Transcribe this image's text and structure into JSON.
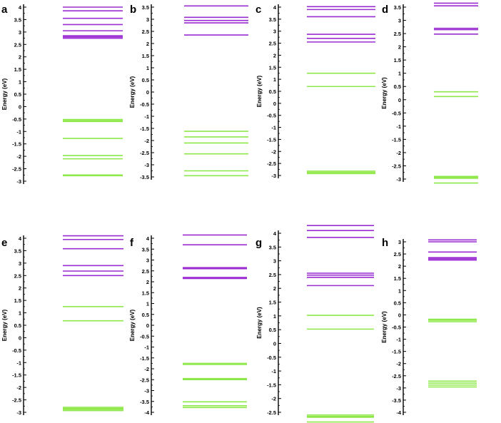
{
  "figure": {
    "colors": {
      "green": "#8ee84a",
      "purple": "#9a2cd2",
      "axis": "#000000"
    }
  },
  "chart_data": [
    {
      "panel": "a",
      "type": "energy_levels",
      "ylabel": "Energy (eV)",
      "ylim": [
        -3,
        4
      ],
      "tick_step": 0.5,
      "tick_labels": [
        "4",
        "3.5",
        "3",
        "2.5",
        "2",
        "1.5",
        "1",
        "0.5",
        "0",
        "-0.5",
        "-1",
        "-1.5",
        "-2",
        "-2.5",
        "-3"
      ],
      "green_levels": [
        -0.52,
        -0.57,
        -0.6,
        -1.28,
        -1.97,
        -2.1,
        -2.75,
        -2.78
      ],
      "purple_levels": [
        4.0,
        3.85,
        3.55,
        3.3,
        3.05,
        2.85,
        2.8,
        2.75
      ]
    },
    {
      "panel": "b",
      "type": "energy_levels",
      "ylabel": "Energy (eV)",
      "ylim": [
        -3.5,
        4
      ],
      "tick_step": 0.5,
      "tick_labels": [
        "3.5",
        "3",
        "2.5",
        "2",
        "1.5",
        "1",
        "0.5",
        "0",
        "-0.5",
        "-1",
        "-1.5",
        "-2",
        "-2.5",
        "-3",
        "-3.5"
      ],
      "green_levels": [
        -1.62,
        -1.85,
        -2.1,
        -2.55,
        -3.25,
        -3.45
      ],
      "purple_levels": [
        3.85,
        3.55,
        3.08,
        2.95,
        2.85,
        2.35
      ]
    },
    {
      "panel": "c",
      "type": "energy_levels",
      "ylabel": "Energy (eV)",
      "ylim": [
        -3,
        4
      ],
      "tick_step": 0.5,
      "tick_labels": [
        "4",
        "3.5",
        "3",
        "2.5",
        "2",
        "1.5",
        "1",
        "0.5",
        "0",
        "-0.5",
        "-1",
        "-1.5",
        "-2",
        "-2.5",
        "-3"
      ],
      "green_levels": [
        1.25,
        0.7,
        -2.82,
        -2.87,
        -2.92
      ],
      "purple_levels": [
        4.02,
        3.9,
        3.6,
        2.87,
        2.7,
        2.55
      ]
    },
    {
      "panel": "d",
      "type": "energy_levels",
      "ylabel": "Energy (eV)",
      "ylim": [
        -3.5,
        4
      ],
      "tick_step": 0.5,
      "tick_labels": [
        "3.5",
        "3",
        "2.5",
        "2",
        "1.5",
        "1",
        "0.5",
        "0",
        "-0.5",
        "-1",
        "-1.5",
        "-2",
        "-2.5",
        "-3"
      ],
      "green_levels": [
        0.3,
        0.12,
        -2.9,
        -2.93,
        -2.97,
        -3.15
      ],
      "purple_levels": [
        3.65,
        3.55,
        2.7,
        2.65,
        2.48
      ]
    },
    {
      "panel": "e",
      "type": "energy_levels",
      "ylabel": "Energy (eV)",
      "ylim": [
        -3,
        4
      ],
      "tick_step": 0.5,
      "tick_labels": [
        "4",
        "3.5",
        "3",
        "2.5",
        "2",
        "1.5",
        "1",
        "0.5",
        "0",
        "-0.5",
        "-1",
        "-1.5",
        "-2",
        "-2.5",
        "-3"
      ],
      "green_levels": [
        1.25,
        0.68,
        -2.8,
        -2.85,
        -2.88,
        -2.93
      ],
      "purple_levels": [
        4.1,
        3.95,
        3.58,
        2.9,
        2.68,
        2.5
      ]
    },
    {
      "panel": "f",
      "type": "energy_levels",
      "ylabel": "Energy (eV)",
      "ylim": [
        -4,
        4.2
      ],
      "tick_step": 0.5,
      "tick_labels": [
        "4",
        "3.5",
        "3",
        "2.5",
        "2",
        "1.5",
        "1",
        "0.5",
        "0",
        "-0.5",
        "-1",
        "-1.5",
        "-2",
        "-2.5",
        "-3",
        "-3.5",
        "-4"
      ],
      "green_levels": [
        -1.75,
        -1.8,
        -2.45,
        -2.5,
        -3.52,
        -3.7,
        -3.78
      ],
      "purple_levels": [
        4.15,
        3.7,
        2.65,
        2.6,
        2.2,
        2.15
      ]
    },
    {
      "panel": "g",
      "type": "energy_levels",
      "ylabel": "Energy (eV)",
      "ylim": [
        -3,
        4.3
      ],
      "tick_step": 0.5,
      "tick_labels": [
        "4",
        "3.5",
        "3",
        "2.5",
        "2",
        "1.5",
        "1",
        "0.5",
        "0",
        "-0.5",
        "-1",
        "-1.5",
        "-2",
        "-2.5"
      ],
      "green_levels": [
        1.02,
        0.52,
        -2.6,
        -2.65,
        -2.68,
        -2.85
      ],
      "purple_levels": [
        4.28,
        4.1,
        3.85,
        2.55,
        2.48,
        2.4,
        2.1
      ]
    },
    {
      "panel": "h",
      "type": "energy_levels",
      "ylabel": "Energy (eV)",
      "ylim": [
        -4,
        3.2
      ],
      "tick_step": 0.5,
      "tick_labels": [
        "3",
        "2.5",
        "2",
        "1.5",
        "1",
        "0.5",
        "0",
        "-0.5",
        "-1",
        "-1.5",
        "-2",
        "-2.5",
        "-3",
        "-3.5",
        "-4"
      ],
      "green_levels": [
        -0.18,
        -0.22,
        -0.28,
        -2.72,
        -2.8,
        -2.88,
        -2.96
      ],
      "purple_levels": [
        3.08,
        3.0,
        2.58,
        2.35,
        2.3,
        2.25
      ]
    }
  ]
}
